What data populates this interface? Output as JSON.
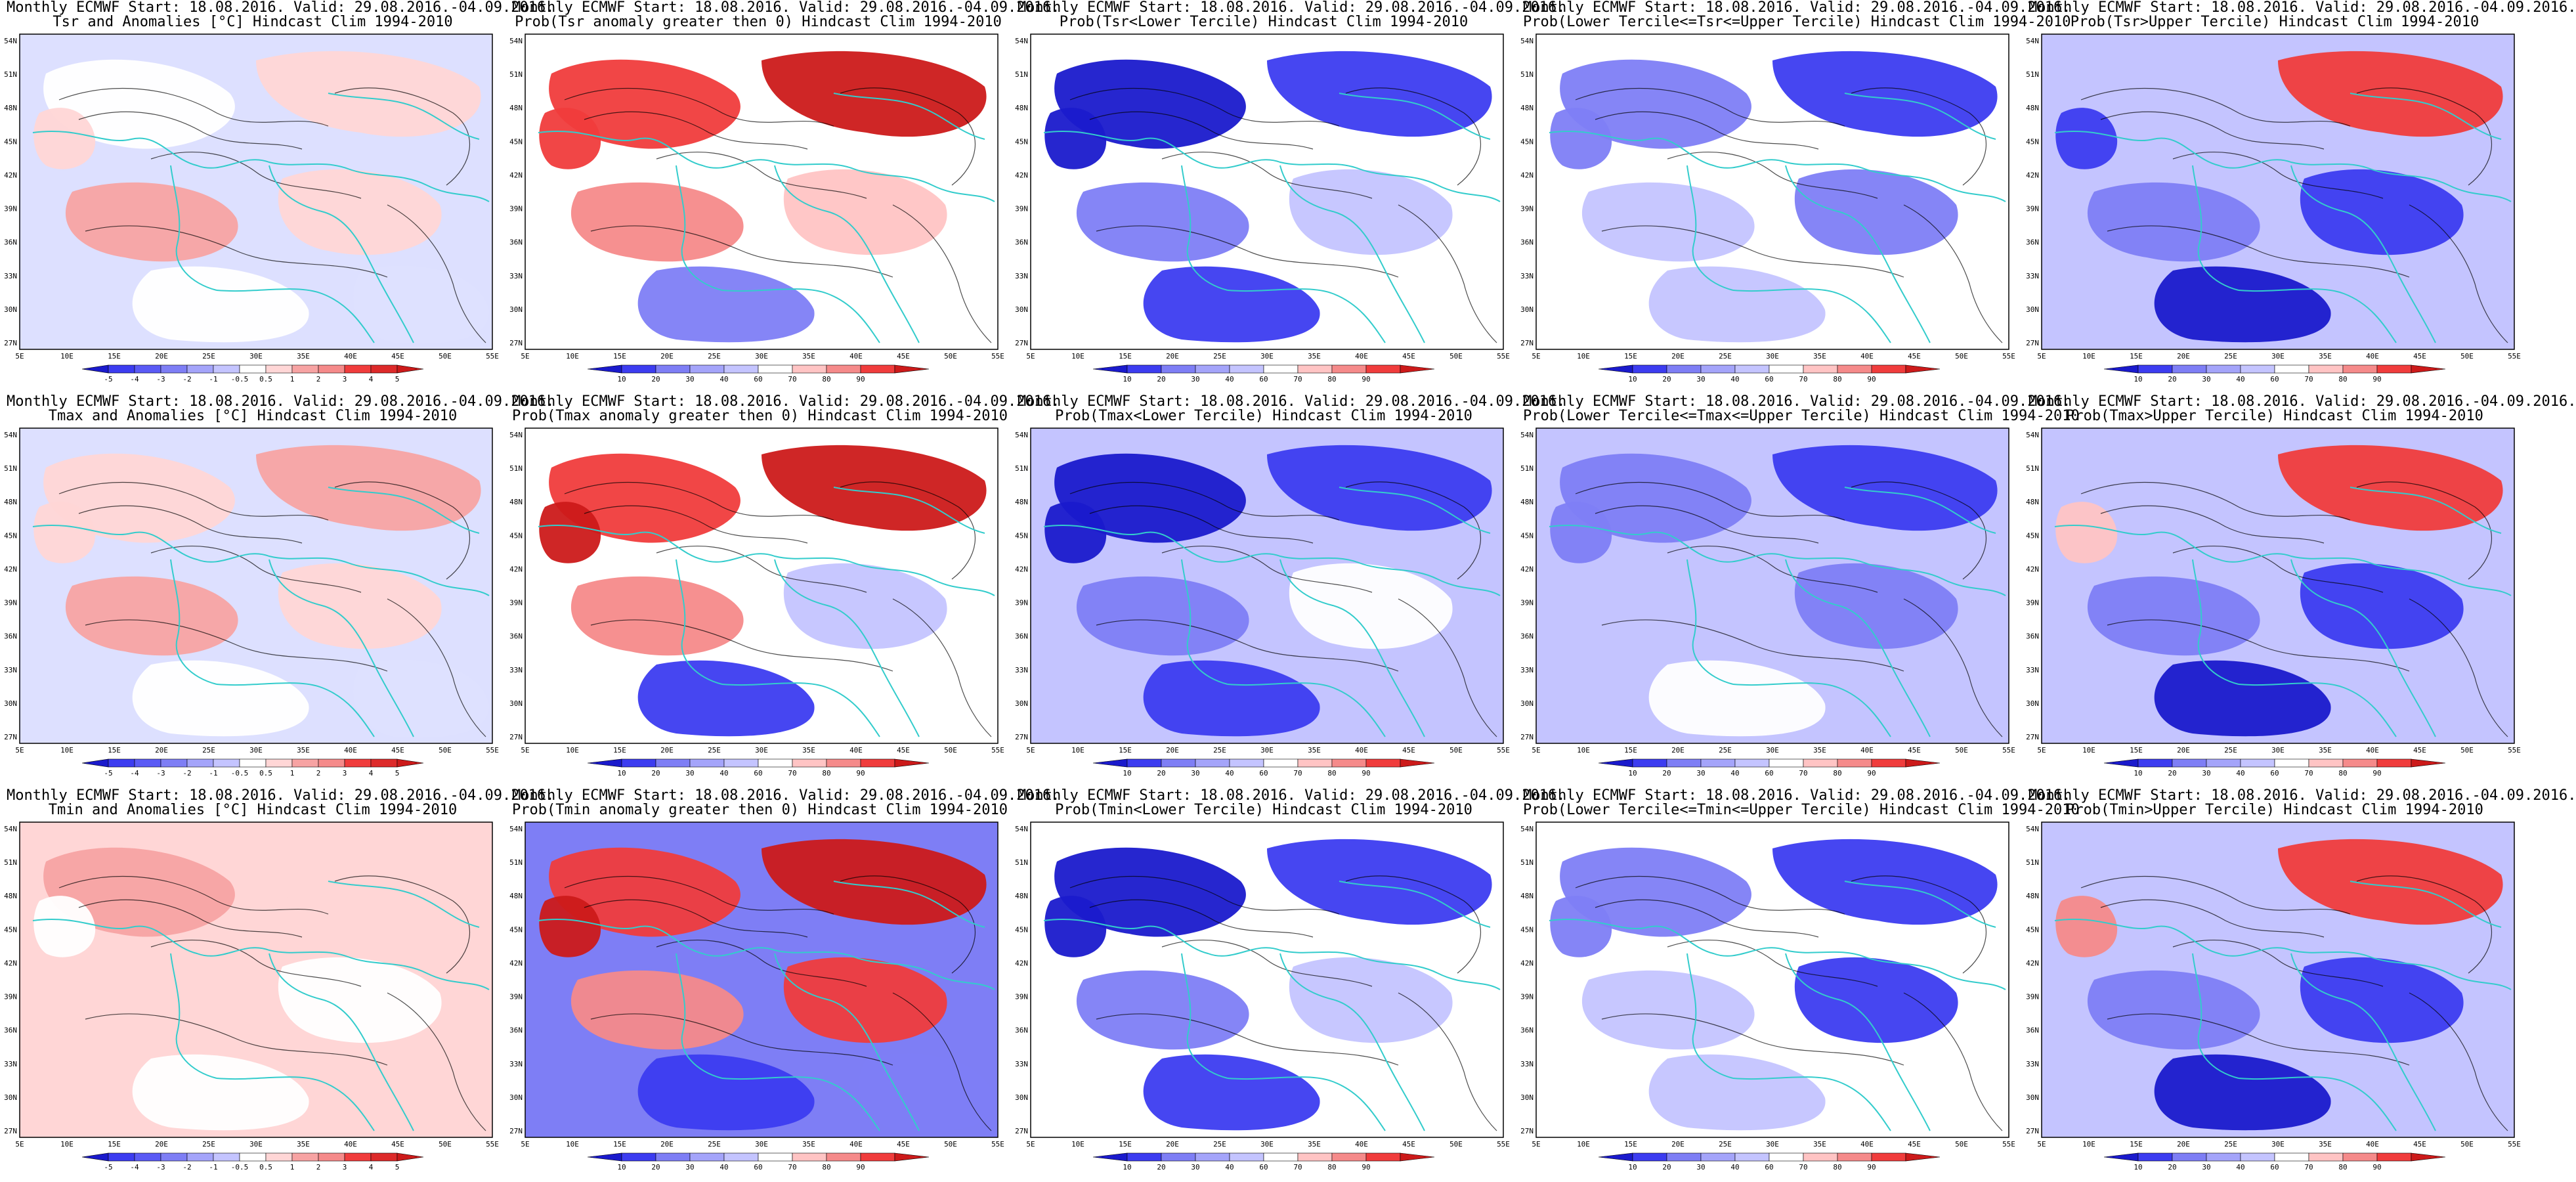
{
  "lat_labels": [
    "54N",
    "51N",
    "48N",
    "45N",
    "42N",
    "39N",
    "36N",
    "33N",
    "30N",
    "27N"
  ],
  "lon_labels": [
    "5E",
    "10E",
    "15E",
    "20E",
    "25E",
    "30E",
    "35E",
    "40E",
    "45E",
    "50E",
    "55E"
  ],
  "anomaly_scale": [
    "-5",
    "-4",
    "-3",
    "-2",
    "-1",
    "-0.5",
    "0.5",
    "1",
    "2",
    "3",
    "4",
    "5"
  ],
  "prob_scale": [
    "10",
    "20",
    "30",
    "40",
    "60",
    "70",
    "80",
    "90"
  ],
  "colors": {
    "dark_blue": "#1a1acc",
    "blue": "#3c3cf0",
    "mid_blue": "#7e7ef5",
    "light_blue": "#c4c4ff",
    "white": "#ffffff",
    "light_red": "#ffc4c4",
    "mid_red": "#f58a8a",
    "red": "#f03c3c",
    "dark_red": "#cc1a1a",
    "coast": "#33cccc",
    "contour": "#000000"
  },
  "rows": [
    {
      "panels": [
        {
          "line1": "Monthly ECMWF Start: 18.08.2016. Valid: 29.08.2016.-04.09.2016.",
          "line2": "Tsr and Anomalies [°C] Hindcast Clim 1994-2010",
          "scale": "anomaly",
          "palette": [
            "#ffffff",
            "#ffd6d6",
            "#f7a3a3",
            "#ffd6d6",
            "#ffffff",
            "#dde0ff",
            "#ffd6d6"
          ]
        },
        {
          "line1": "Monthly ECMWF Start: 18.08.2016. Valid: 29.08.2016.-04.09.2016.",
          "line2": "Prob(Tsr anomaly greater then 0) Hindcast Clim 1994-2010",
          "scale": "prob",
          "palette": [
            "#f03c3c",
            "#cc1a1a",
            "#f58a8a",
            "#ffc4c4",
            "#7e7ef5",
            "#ffffff",
            "#f03c3c"
          ]
        },
        {
          "line1": "Monthly ECMWF Start: 18.08.2016. Valid: 29.08.2016.-04.09.2016.",
          "line2": "Prob(Tsr<Lower Tercile) Hindcast Clim 1994-2010",
          "scale": "prob",
          "palette": [
            "#1a1acc",
            "#3c3cf0",
            "#7e7ef5",
            "#c4c4ff",
            "#3c3cf0",
            "#ffffff",
            "#1a1acc"
          ]
        },
        {
          "line1": "Monthly ECMWF Start: 18.08.2016. Valid: 29.08.2016.-04.09.2016.",
          "line2": "Prob(Lower Tercile<=Tsr<=Upper Tercile) Hindcast Clim 1994-2010",
          "scale": "prob",
          "palette": [
            "#7e7ef5",
            "#3c3cf0",
            "#c4c4ff",
            "#7e7ef5",
            "#c4c4ff",
            "#ffffff",
            "#7e7ef5"
          ]
        },
        {
          "line1": "Monthly ECMWF Start: 18.08.2016. Valid: 29.08.2016.-04.09.2016.",
          "line2": "Prob(Tsr>Upper Tercile) Hindcast Clim 1994-2010",
          "scale": "prob",
          "palette": [
            "#c4c4ff",
            "#f03c3c",
            "#7e7ef5",
            "#3c3cf0",
            "#1a1acc",
            "#c4c4ff",
            "#3c3cf0"
          ]
        }
      ]
    },
    {
      "panels": [
        {
          "line1": "Monthly ECMWF Start: 18.08.2016. Valid: 29.08.2016.-04.09.2016.",
          "line2": "Tmax and Anomalies [°C] Hindcast Clim 1994-2010",
          "scale": "anomaly",
          "palette": [
            "#ffd6d6",
            "#f7a3a3",
            "#f7a3a3",
            "#ffd6d6",
            "#ffffff",
            "#dde0ff",
            "#ffd6d6"
          ]
        },
        {
          "line1": "Monthly ECMWF Start: 18.08.2016. Valid: 29.08.2016.-04.09.2016.",
          "line2": "Prob(Tmax anomaly greater then 0) Hindcast Clim 1994-2010",
          "scale": "prob",
          "palette": [
            "#f03c3c",
            "#cc1a1a",
            "#f58a8a",
            "#c4c4ff",
            "#3c3cf0",
            "#ffffff",
            "#cc1a1a"
          ]
        },
        {
          "line1": "Monthly ECMWF Start: 18.08.2016. Valid: 29.08.2016.-04.09.2016.",
          "line2": "Prob(Tmax<Lower Tercile) Hindcast Clim 1994-2010",
          "scale": "prob",
          "palette": [
            "#1a1acc",
            "#3c3cf0",
            "#7e7ef5",
            "#ffffff",
            "#3c3cf0",
            "#c4c4ff",
            "#1a1acc"
          ]
        },
        {
          "line1": "Monthly ECMWF Start: 18.08.2016. Valid: 29.08.2016.-04.09.2016.",
          "line2": "Prob(Lower Tercile<=Tmax<=Upper Tercile) Hindcast Clim 1994-2010",
          "scale": "prob",
          "palette": [
            "#7e7ef5",
            "#3c3cf0",
            "#c4c4ff",
            "#7e7ef5",
            "#ffffff",
            "#c4c4ff",
            "#7e7ef5"
          ]
        },
        {
          "line1": "Monthly ECMWF Start: 18.08.2016. Valid: 29.08.2016.-04.09.2016.",
          "line2": "Prob(Tmax>Upper Tercile) Hindcast Clim 1994-2010",
          "scale": "prob",
          "palette": [
            "#c4c4ff",
            "#f03c3c",
            "#7e7ef5",
            "#3c3cf0",
            "#1a1acc",
            "#c4c4ff",
            "#ffc4c4"
          ]
        }
      ]
    },
    {
      "panels": [
        {
          "line1": "Monthly ECMWF Start: 18.08.2016. Valid: 29.08.2016.-04.09.2016.",
          "line2": "Tmin and Anomalies [°C] Hindcast Clim 1994-2010",
          "scale": "anomaly",
          "palette": [
            "#f7a3a3",
            "#ffd6d6",
            "#ffd6d6",
            "#ffffff",
            "#ffffff",
            "#ffd6d6",
            "#ffffff"
          ]
        },
        {
          "line1": "Monthly ECMWF Start: 18.08.2016. Valid: 29.08.2016.-04.09.2016.",
          "line2": "Prob(Tmin anomaly greater then 0) Hindcast Clim 1994-2010",
          "scale": "prob",
          "palette": [
            "#f03c3c",
            "#cc1a1a",
            "#f58a8a",
            "#f03c3c",
            "#3c3cf0",
            "#7e7ef5",
            "#cc1a1a"
          ]
        },
        {
          "line1": "Monthly ECMWF Start: 18.08.2016. Valid: 29.08.2016.-04.09.2016.",
          "line2": "Prob(Tmin<Lower Tercile) Hindcast Clim 1994-2010",
          "scale": "prob",
          "palette": [
            "#1a1acc",
            "#3c3cf0",
            "#7e7ef5",
            "#c4c4ff",
            "#3c3cf0",
            "#ffffff",
            "#1a1acc"
          ]
        },
        {
          "line1": "Monthly ECMWF Start: 18.08.2016. Valid: 29.08.2016.-04.09.2016.",
          "line2": "Prob(Lower Tercile<=Tmin<=Upper Tercile) Hindcast Clim 1994-2010",
          "scale": "prob",
          "palette": [
            "#7e7ef5",
            "#3c3cf0",
            "#c4c4ff",
            "#3c3cf0",
            "#c4c4ff",
            "#ffffff",
            "#7e7ef5"
          ]
        },
        {
          "line1": "Monthly ECMWF Start: 18.08.2016. Valid: 29.08.2016.-04.09.2016.",
          "line2": "Prob(Tmin>Upper Tercile) Hindcast Clim 1994-2010",
          "scale": "prob",
          "palette": [
            "#c4c4ff",
            "#f03c3c",
            "#7e7ef5",
            "#3c3cf0",
            "#1a1acc",
            "#c4c4ff",
            "#f58a8a"
          ]
        }
      ]
    }
  ]
}
